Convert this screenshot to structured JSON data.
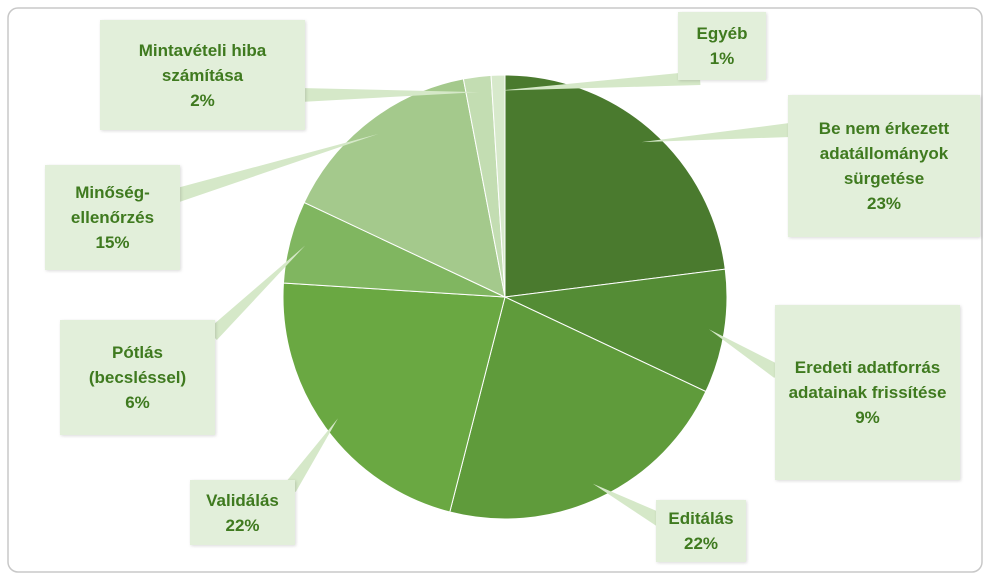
{
  "chart_data": {
    "type": "pie",
    "categories": [
      "Be nem érkezett adatállományok sürgetése",
      "Eredeti adatforrás adatainak frissítése",
      "Editálás",
      "Validálás",
      "Pótlás (becsléssel)",
      "Minőség-ellenőrzés",
      "Mintavételi hiba számítása",
      "Egyéb"
    ],
    "values": [
      23,
      9,
      22,
      22,
      6,
      15,
      2,
      1
    ],
    "value_labels": [
      "23%",
      "9%",
      "22%",
      "22%",
      "6%",
      "15%",
      "2%",
      "1%"
    ],
    "colors": [
      "#4a7a2e",
      "#548c35",
      "#5f9b3b",
      "#6aa842",
      "#80b660",
      "#a4c98c",
      "#c3ddb2",
      "#d7e9cb"
    ]
  }
}
